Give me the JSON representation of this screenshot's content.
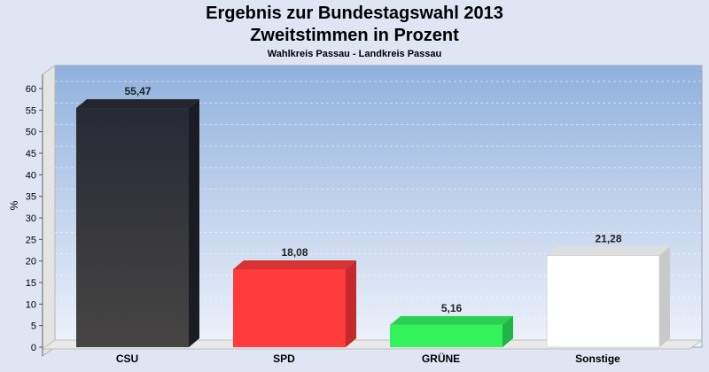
{
  "chart_data": {
    "type": "bar",
    "title": "Ergebnis zur Bundestagswahl 2013",
    "subtitle": "Zweitstimmen in Prozent",
    "caption": "Wahlkreis Passau - Landkreis Passau",
    "ylabel": "%",
    "xlabel": "",
    "ylim": [
      0,
      60
    ],
    "yticks": [
      0,
      5,
      10,
      15,
      20,
      25,
      30,
      35,
      40,
      45,
      50,
      55,
      60
    ],
    "grid": true,
    "categories": [
      "CSU",
      "SPD",
      "GRÜNE",
      "Sonstige"
    ],
    "values": [
      55.47,
      18.08,
      5.16,
      21.28
    ],
    "value_labels": [
      "55,47",
      "18,08",
      "5,16",
      "21,28"
    ],
    "colors": [
      "#2b2e3a",
      "#ff3b3b",
      "#33f25c",
      "#ffffff"
    ],
    "side_colors": [
      "#1a1c24",
      "#c42a2a",
      "#22b444",
      "#c9c9c9"
    ],
    "top_colors": [
      "#23252f",
      "#d93232",
      "#2bd050",
      "#dedede"
    ]
  }
}
